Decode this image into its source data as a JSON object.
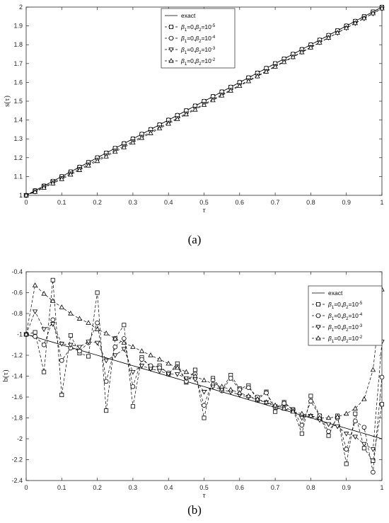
{
  "chart_data": [
    {
      "panel": "a",
      "caption": "(a)",
      "type": "line",
      "xlabel": "τ",
      "ylabel": "s(τ)",
      "xlim": [
        0,
        1
      ],
      "ylim": [
        1,
        2
      ],
      "xticks": [
        "0",
        "0.1",
        "0.2",
        "0.3",
        "0.4",
        "0.5",
        "0.6",
        "0.7",
        "0.8",
        "0.9",
        "1"
      ],
      "yticks": [
        "1",
        "1.1",
        "1.2",
        "1.3",
        "1.4",
        "1.5",
        "1.6",
        "1.7",
        "1.8",
        "1.9",
        "2"
      ],
      "legend_position": "top-center",
      "x": [
        0,
        0.025,
        0.05,
        0.075,
        0.1,
        0.125,
        0.15,
        0.175,
        0.2,
        0.225,
        0.25,
        0.275,
        0.3,
        0.325,
        0.35,
        0.375,
        0.4,
        0.425,
        0.45,
        0.475,
        0.5,
        0.525,
        0.55,
        0.575,
        0.6,
        0.625,
        0.65,
        0.675,
        0.7,
        0.725,
        0.75,
        0.775,
        0.8,
        0.825,
        0.85,
        0.875,
        0.9,
        0.925,
        0.95,
        0.975,
        1
      ],
      "series": [
        {
          "name": "exact",
          "marker": "none",
          "dash": "solid",
          "values": [
            1,
            1.025,
            1.05,
            1.075,
            1.1,
            1.125,
            1.15,
            1.175,
            1.2,
            1.225,
            1.25,
            1.275,
            1.3,
            1.325,
            1.35,
            1.375,
            1.4,
            1.425,
            1.45,
            1.475,
            1.5,
            1.525,
            1.55,
            1.575,
            1.6,
            1.625,
            1.65,
            1.675,
            1.7,
            1.725,
            1.75,
            1.775,
            1.8,
            1.825,
            1.85,
            1.875,
            1.9,
            1.925,
            1.95,
            1.975,
            2
          ]
        },
        {
          "name": "β1=0,β2=10^-5",
          "legend_sup": "-5",
          "marker": "square",
          "dash": "dashed",
          "values": [
            1,
            1.025,
            1.05,
            1.075,
            1.1,
            1.125,
            1.15,
            1.175,
            1.2,
            1.225,
            1.25,
            1.275,
            1.3,
            1.325,
            1.35,
            1.375,
            1.4,
            1.425,
            1.45,
            1.475,
            1.5,
            1.525,
            1.55,
            1.575,
            1.6,
            1.625,
            1.65,
            1.675,
            1.7,
            1.725,
            1.75,
            1.775,
            1.8,
            1.825,
            1.85,
            1.875,
            1.9,
            1.925,
            1.95,
            1.975,
            2
          ]
        },
        {
          "name": "β1=0,β2=10^-4",
          "legend_sup": "-4",
          "marker": "circle",
          "dash": "dashed",
          "values": [
            1,
            1.025,
            1.05,
            1.075,
            1.1,
            1.125,
            1.15,
            1.175,
            1.2,
            1.225,
            1.25,
            1.275,
            1.3,
            1.325,
            1.35,
            1.375,
            1.4,
            1.425,
            1.45,
            1.475,
            1.5,
            1.525,
            1.55,
            1.575,
            1.6,
            1.625,
            1.65,
            1.675,
            1.7,
            1.725,
            1.75,
            1.775,
            1.8,
            1.825,
            1.85,
            1.875,
            1.9,
            1.925,
            1.95,
            1.975,
            2
          ]
        },
        {
          "name": "β1=0,β2=10^-3",
          "legend_sup": "-3",
          "marker": "triangle-down",
          "dash": "dashed",
          "values": [
            1,
            1.02,
            1.045,
            1.068,
            1.092,
            1.116,
            1.14,
            1.164,
            1.189,
            1.213,
            1.238,
            1.262,
            1.287,
            1.311,
            1.336,
            1.361,
            1.386,
            1.41,
            1.435,
            1.46,
            1.485,
            1.51,
            1.535,
            1.56,
            1.585,
            1.61,
            1.635,
            1.66,
            1.686,
            1.711,
            1.736,
            1.762,
            1.787,
            1.812,
            1.838,
            1.863,
            1.889,
            1.914,
            1.94,
            1.966,
            1.992
          ]
        },
        {
          "name": "β1=0,β2=10^-2",
          "legend_sup": "-2",
          "marker": "triangle-up",
          "dash": "dashed",
          "values": [
            1,
            1.018,
            1.04,
            1.063,
            1.086,
            1.11,
            1.134,
            1.158,
            1.182,
            1.206,
            1.231,
            1.255,
            1.28,
            1.305,
            1.33,
            1.355,
            1.38,
            1.405,
            1.43,
            1.455,
            1.48,
            1.505,
            1.53,
            1.556,
            1.581,
            1.606,
            1.632,
            1.657,
            1.683,
            1.708,
            1.734,
            1.76,
            1.785,
            1.811,
            1.837,
            1.863,
            1.889,
            1.915,
            1.941,
            1.967,
            1.993
          ]
        }
      ]
    },
    {
      "panel": "b",
      "caption": "(b)",
      "type": "line",
      "xlabel": "τ",
      "ylabel": "b(τ)",
      "xlim": [
        0,
        1
      ],
      "ylim": [
        -2.4,
        -0.4
      ],
      "xticks": [
        "0",
        "0.1",
        "0.2",
        "0.3",
        "0.4",
        "0.5",
        "0.6",
        "0.7",
        "0.8",
        "0.9",
        "1"
      ],
      "yticks": [
        "-0.4",
        "-0.6",
        "-0.8",
        "-1",
        "-1.2",
        "-1.4",
        "-1.6",
        "-1.8",
        "-2",
        "-2.2",
        "-2.4"
      ],
      "legend_position": "top-right",
      "x": [
        0,
        0.025,
        0.05,
        0.075,
        0.1,
        0.125,
        0.15,
        0.175,
        0.2,
        0.225,
        0.25,
        0.275,
        0.3,
        0.325,
        0.35,
        0.375,
        0.4,
        0.425,
        0.45,
        0.475,
        0.5,
        0.525,
        0.55,
        0.575,
        0.6,
        0.625,
        0.65,
        0.675,
        0.7,
        0.725,
        0.75,
        0.775,
        0.8,
        0.825,
        0.85,
        0.875,
        0.9,
        0.925,
        0.95,
        0.975,
        1
      ],
      "series": [
        {
          "name": "exact",
          "marker": "none",
          "dash": "solid",
          "values": [
            -1,
            -1.025,
            -1.05,
            -1.075,
            -1.1,
            -1.125,
            -1.15,
            -1.175,
            -1.2,
            -1.225,
            -1.25,
            -1.275,
            -1.3,
            -1.325,
            -1.35,
            -1.375,
            -1.4,
            -1.425,
            -1.45,
            -1.475,
            -1.5,
            -1.525,
            -1.55,
            -1.575,
            -1.6,
            -1.625,
            -1.65,
            -1.675,
            -1.7,
            -1.725,
            -1.75,
            -1.775,
            -1.8,
            -1.825,
            -1.85,
            -1.875,
            -1.9,
            -1.925,
            -1.95,
            -1.975,
            -2
          ]
        },
        {
          "name": "β1=0,β2=10^-5",
          "legend_sup": "-5",
          "marker": "square",
          "dash": "dashed",
          "values": [
            -1,
            -0.98,
            -1.36,
            -0.48,
            -1.58,
            -1.01,
            -1.18,
            -1.21,
            -0.6,
            -1.73,
            -1.04,
            -0.91,
            -1.69,
            -1.22,
            -1.32,
            -1.3,
            -1.38,
            -1.28,
            -1.46,
            -1.34,
            -1.8,
            -1.42,
            -1.53,
            -1.39,
            -1.52,
            -1.49,
            -1.63,
            -1.55,
            -1.74,
            -1.65,
            -1.72,
            -1.95,
            -1.59,
            -1.78,
            -1.97,
            -1.78,
            -2.24,
            -1.76,
            -2.09,
            -2.21,
            -1.67
          ]
        },
        {
          "name": "β1=0,β2=10^-4",
          "legend_sup": "-4",
          "marker": "circle",
          "dash": "dashed",
          "values": [
            -1,
            -1.02,
            -1.1,
            -0.86,
            -1.25,
            -1.13,
            -1.16,
            -1.08,
            -0.89,
            -1.45,
            -1.12,
            -1.04,
            -1.5,
            -1.24,
            -1.3,
            -1.32,
            -1.37,
            -1.31,
            -1.45,
            -1.38,
            -1.68,
            -1.44,
            -1.54,
            -1.42,
            -1.53,
            -1.51,
            -1.6,
            -1.56,
            -1.7,
            -1.66,
            -1.72,
            -1.87,
            -1.64,
            -1.78,
            -1.93,
            -1.8,
            -2.1,
            -1.83,
            -1.89,
            -2.32,
            -1.41
          ]
        },
        {
          "name": "β1=0,β2=10^-3",
          "legend_sup": "-3",
          "marker": "triangle-down",
          "dash": "dashed",
          "values": [
            -1,
            -0.78,
            -0.95,
            -0.9,
            -1.09,
            -1.1,
            -1.12,
            -1.07,
            -1.08,
            -1.25,
            -1.2,
            -1.14,
            -1.36,
            -1.3,
            -1.33,
            -1.35,
            -1.38,
            -1.38,
            -1.42,
            -1.43,
            -1.55,
            -1.5,
            -1.53,
            -1.55,
            -1.58,
            -1.6,
            -1.63,
            -1.65,
            -1.69,
            -1.7,
            -1.73,
            -1.8,
            -1.78,
            -1.82,
            -1.86,
            -1.88,
            -1.95,
            -1.98,
            -2.05,
            -2.1,
            -1.07
          ]
        },
        {
          "name": "β1=0,β2=10^-2",
          "legend_sup": "-2",
          "marker": "triangle-up",
          "dash": "dashed",
          "values": [
            -1,
            -0.53,
            -0.61,
            -0.68,
            -0.74,
            -0.8,
            -0.85,
            -0.89,
            -0.95,
            -0.99,
            -1.04,
            -1.08,
            -1.12,
            -1.16,
            -1.2,
            -1.24,
            -1.28,
            -1.32,
            -1.36,
            -1.4,
            -1.44,
            -1.47,
            -1.5,
            -1.53,
            -1.56,
            -1.59,
            -1.62,
            -1.65,
            -1.68,
            -1.71,
            -1.74,
            -1.76,
            -1.78,
            -1.8,
            -1.8,
            -1.79,
            -1.76,
            -1.71,
            -1.62,
            -1.34,
            -0.57
          ]
        }
      ]
    }
  ]
}
